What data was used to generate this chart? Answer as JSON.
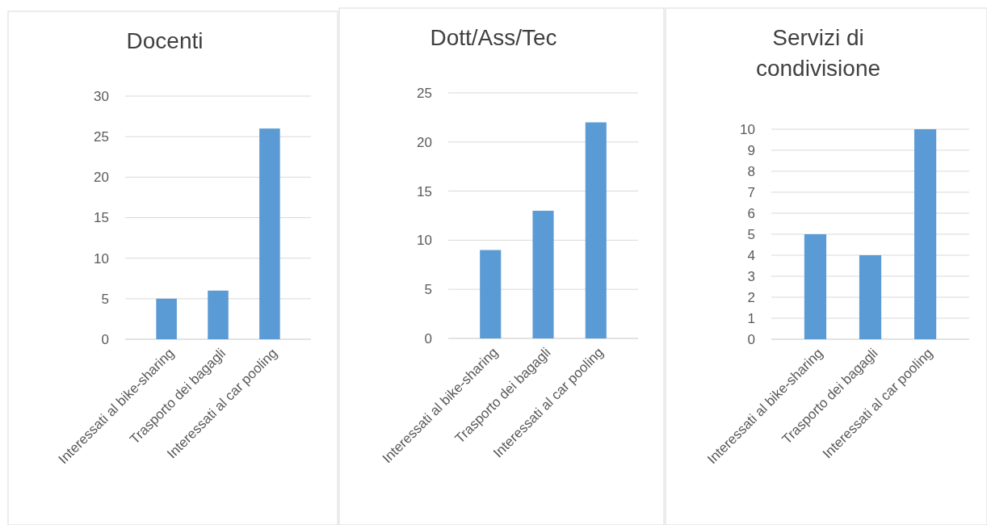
{
  "chart_data": [
    {
      "type": "bar",
      "title": "Docenti",
      "categories": [
        "Interessati al bike-sharing",
        "Trasporto dei bagagli",
        "Interessati al car pooling"
      ],
      "values": [
        5,
        6,
        26
      ],
      "color": "#5b9bd5",
      "ylim": [
        0,
        30
      ],
      "yticks": [
        0,
        5,
        10,
        15,
        20,
        25,
        30
      ],
      "grid": "y"
    },
    {
      "type": "bar",
      "title": "Dott/Ass/Tec",
      "categories": [
        "Interessati al bike-sharing",
        "Trasporto dei bagagli",
        "Interessati al car pooling"
      ],
      "values": [
        9,
        13,
        22
      ],
      "color": "#5b9bd5",
      "ylim": [
        0,
        25
      ],
      "yticks": [
        0,
        5,
        10,
        15,
        20,
        25
      ],
      "grid": "y"
    },
    {
      "type": "bar",
      "title": "Servizi di condivisione",
      "categories": [
        "Interessati al bike-sharing",
        "Trasporto dei bagagli",
        "Interessati al car pooling"
      ],
      "values": [
        5,
        4,
        10
      ],
      "color": "#5b9bd5",
      "ylim": [
        0,
        10
      ],
      "yticks": [
        0,
        1,
        2,
        3,
        4,
        5,
        6,
        7,
        8,
        9,
        10
      ],
      "grid": "y"
    }
  ]
}
